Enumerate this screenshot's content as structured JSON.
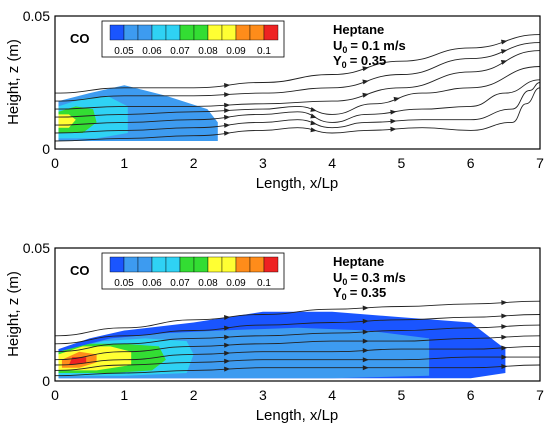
{
  "palette": {
    "levels": [
      "#1a55ff",
      "#3d9bf0",
      "#2fd2f4",
      "#33dd33",
      "#ffff33",
      "#ff8c1a",
      "#ee2222"
    ],
    "background_field": "#2a66e6",
    "streamline": "#222222"
  },
  "chart_data": [
    {
      "type": "heatmap",
      "title": "",
      "xlabel": "Length, x/Lp",
      "ylabel": "Height, z (m)",
      "xlim": [
        0,
        7
      ],
      "ylim": [
        0,
        0.05
      ],
      "xticks": [
        "0",
        "1",
        "2",
        "3",
        "4",
        "5",
        "6",
        "7"
      ],
      "yticks": [
        "0",
        "0.05"
      ],
      "grid": false,
      "colorbar": {
        "label": "CO",
        "ticks": [
          "0.05",
          "0.06",
          "0.07",
          "0.08",
          "0.09",
          "0.1"
        ]
      },
      "annotation": {
        "fuel": "Heptane",
        "u0_text": "U",
        "u0_sub": "0",
        "u0_value": "= 0.1 m/s",
        "y0_text": "Y",
        "y0_sub": "0",
        "y0_value": "= 0.35"
      },
      "u0": 0.1,
      "y0": 0.35,
      "regions": [
        {
          "level": 1,
          "points": [
            [
              0.05,
              0.003
            ],
            [
              0.05,
              0.018
            ],
            [
              0.5,
              0.021
            ],
            [
              1.0,
              0.024
            ],
            [
              1.6,
              0.02
            ],
            [
              2.2,
              0.015
            ],
            [
              2.35,
              0.01
            ],
            [
              2.35,
              0.003
            ]
          ]
        },
        {
          "level": 2,
          "points": [
            [
              0.05,
              0.004
            ],
            [
              0.05,
              0.016
            ],
            [
              0.4,
              0.019
            ],
            [
              0.75,
              0.02
            ],
            [
              1.05,
              0.016
            ],
            [
              1.05,
              0.006
            ],
            [
              0.6,
              0.004
            ]
          ]
        },
        {
          "level": 3,
          "points": [
            [
              0.05,
              0.006
            ],
            [
              0.05,
              0.014
            ],
            [
              0.3,
              0.016
            ],
            [
              0.55,
              0.015
            ],
            [
              0.6,
              0.01
            ],
            [
              0.4,
              0.006
            ]
          ]
        },
        {
          "level": 4,
          "points": [
            [
              0.05,
              0.008
            ],
            [
              0.05,
              0.013
            ],
            [
              0.2,
              0.013
            ],
            [
              0.3,
              0.011
            ],
            [
              0.2,
              0.008
            ]
          ]
        }
      ],
      "streamlines": [
        [
          [
            0,
            0.021
          ],
          [
            1,
            0.023
          ],
          [
            2,
            0.023
          ],
          [
            3,
            0.025
          ],
          [
            4,
            0.028
          ],
          [
            5,
            0.033
          ],
          [
            6,
            0.038
          ],
          [
            7,
            0.043
          ]
        ],
        [
          [
            0,
            0.018
          ],
          [
            1,
            0.02
          ],
          [
            2,
            0.02
          ],
          [
            3,
            0.021
          ],
          [
            4,
            0.023
          ],
          [
            5,
            0.028
          ],
          [
            6,
            0.034
          ],
          [
            7,
            0.04
          ]
        ],
        [
          [
            0,
            0.015
          ],
          [
            1,
            0.016
          ],
          [
            2,
            0.016
          ],
          [
            3,
            0.017
          ],
          [
            4,
            0.018
          ],
          [
            5,
            0.023
          ],
          [
            6,
            0.029
          ],
          [
            7,
            0.037
          ]
        ],
        [
          [
            0,
            0.012
          ],
          [
            1,
            0.013
          ],
          [
            2,
            0.014
          ],
          [
            3,
            0.015
          ],
          [
            3.5,
            0.016
          ],
          [
            4,
            0.013
          ],
          [
            4.6,
            0.017
          ],
          [
            5.3,
            0.021
          ],
          [
            6,
            0.023
          ],
          [
            7,
            0.031
          ]
        ],
        [
          [
            0,
            0.009
          ],
          [
            1,
            0.01
          ],
          [
            2,
            0.011
          ],
          [
            3,
            0.013
          ],
          [
            3.5,
            0.014
          ],
          [
            4,
            0.01
          ],
          [
            4.5,
            0.013
          ],
          [
            5.3,
            0.015
          ],
          [
            6,
            0.016
          ],
          [
            6.5,
            0.021
          ],
          [
            7,
            0.026
          ]
        ],
        [
          [
            0,
            0.006
          ],
          [
            1,
            0.007
          ],
          [
            2,
            0.008
          ],
          [
            3,
            0.01
          ],
          [
            3.5,
            0.011
          ],
          [
            4,
            0.008
          ],
          [
            4.5,
            0.01
          ],
          [
            5.3,
            0.011
          ],
          [
            6,
            0.011
          ],
          [
            6.6,
            0.015
          ],
          [
            6.85,
            0.022
          ],
          [
            7,
            0.025
          ]
        ],
        [
          [
            0,
            0.003
          ],
          [
            1,
            0.004
          ],
          [
            2,
            0.005
          ],
          [
            3,
            0.007
          ],
          [
            3.5,
            0.008
          ],
          [
            4,
            0.006
          ],
          [
            4.5,
            0.007
          ],
          [
            5.3,
            0.008
          ],
          [
            6,
            0.007
          ],
          [
            6.6,
            0.01
          ],
          [
            6.8,
            0.017
          ],
          [
            7,
            0.023
          ]
        ]
      ]
    },
    {
      "type": "heatmap",
      "title": "",
      "xlabel": "Length, x/Lp",
      "ylabel": "Height, z (m)",
      "xlim": [
        0,
        7
      ],
      "ylim": [
        0,
        0.05
      ],
      "xticks": [
        "0",
        "1",
        "2",
        "3",
        "4",
        "5",
        "6",
        "7"
      ],
      "yticks": [
        "0",
        "0.05"
      ],
      "grid": false,
      "colorbar": {
        "label": "CO",
        "ticks": [
          "0.05",
          "0.06",
          "0.07",
          "0.08",
          "0.09",
          "0.1"
        ]
      },
      "annotation": {
        "fuel": "Heptane",
        "u0_text": "U",
        "u0_sub": "0",
        "u0_value": "= 0.3 m/s",
        "y0_text": "Y",
        "y0_sub": "0",
        "y0_value": "= 0.35"
      },
      "u0": 0.3,
      "y0": 0.35,
      "regions": [
        {
          "level": 0,
          "points": [
            [
              0.05,
              0.001
            ],
            [
              0.05,
              0.012
            ],
            [
              0.5,
              0.016
            ],
            [
              1,
              0.019
            ],
            [
              2,
              0.022
            ],
            [
              3,
              0.026
            ],
            [
              4,
              0.026
            ],
            [
              5,
              0.024
            ],
            [
              6,
              0.022
            ],
            [
              6.5,
              0.012
            ],
            [
              6.5,
              0.003
            ],
            [
              6,
              0.001
            ]
          ]
        },
        {
          "level": 1,
          "points": [
            [
              0.05,
              0.001
            ],
            [
              0.05,
              0.011
            ],
            [
              0.8,
              0.016
            ],
            [
              1.6,
              0.018
            ],
            [
              2.4,
              0.019
            ],
            [
              3.5,
              0.02
            ],
            [
              4.5,
              0.019
            ],
            [
              5.4,
              0.016
            ],
            [
              5.4,
              0.002
            ],
            [
              4,
              0.001
            ]
          ]
        },
        {
          "level": 2,
          "points": [
            [
              0.05,
              0.002
            ],
            [
              0.05,
              0.011
            ],
            [
              0.7,
              0.015
            ],
            [
              1.3,
              0.016
            ],
            [
              1.9,
              0.015
            ],
            [
              2,
              0.01
            ],
            [
              1.9,
              0.003
            ],
            [
              1,
              0.002
            ]
          ]
        },
        {
          "level": 3,
          "points": [
            [
              0.05,
              0.003
            ],
            [
              0.05,
              0.011
            ],
            [
              0.5,
              0.014
            ],
            [
              1,
              0.014
            ],
            [
              1.5,
              0.013
            ],
            [
              1.6,
              0.008
            ],
            [
              1.4,
              0.004
            ],
            [
              0.8,
              0.003
            ]
          ]
        },
        {
          "level": 4,
          "points": [
            [
              0.05,
              0.004
            ],
            [
              0.05,
              0.01
            ],
            [
              0.4,
              0.013
            ],
            [
              0.8,
              0.013
            ],
            [
              1.1,
              0.011
            ],
            [
              1.1,
              0.006
            ],
            [
              0.6,
              0.004
            ]
          ]
        },
        {
          "level": 5,
          "points": [
            [
              0.1,
              0.005
            ],
            [
              0.1,
              0.008
            ],
            [
              0.35,
              0.011
            ],
            [
              0.6,
              0.01
            ],
            [
              0.6,
              0.007
            ],
            [
              0.35,
              0.005
            ]
          ]
        },
        {
          "level": 6,
          "points": [
            [
              0.2,
              0.006
            ],
            [
              0.25,
              0.009
            ],
            [
              0.45,
              0.009
            ],
            [
              0.45,
              0.007
            ]
          ]
        }
      ],
      "streamlines": [
        [
          [
            0,
            0.017
          ],
          [
            1,
            0.02
          ],
          [
            2,
            0.023
          ],
          [
            3,
            0.025
          ],
          [
            4,
            0.027
          ],
          [
            5,
            0.028
          ],
          [
            6,
            0.029
          ],
          [
            7,
            0.03
          ]
        ],
        [
          [
            0,
            0.014
          ],
          [
            1,
            0.017
          ],
          [
            2,
            0.019
          ],
          [
            3,
            0.021
          ],
          [
            4,
            0.022
          ],
          [
            5,
            0.023
          ],
          [
            6,
            0.024
          ],
          [
            7,
            0.025
          ]
        ],
        [
          [
            0,
            0.011
          ],
          [
            1,
            0.014
          ],
          [
            2,
            0.016
          ],
          [
            3,
            0.017
          ],
          [
            4,
            0.018
          ],
          [
            5,
            0.019
          ],
          [
            6,
            0.02
          ],
          [
            7,
            0.021
          ]
        ],
        [
          [
            0,
            0.008
          ],
          [
            1,
            0.011
          ],
          [
            2,
            0.013
          ],
          [
            3,
            0.014
          ],
          [
            4,
            0.015
          ],
          [
            5,
            0.015
          ],
          [
            6,
            0.016
          ],
          [
            7,
            0.017
          ]
        ],
        [
          [
            0,
            0.006
          ],
          [
            1,
            0.008
          ],
          [
            2,
            0.01
          ],
          [
            3,
            0.011
          ],
          [
            4,
            0.011
          ],
          [
            5,
            0.012
          ],
          [
            6,
            0.012
          ],
          [
            7,
            0.013
          ]
        ],
        [
          [
            0,
            0.004
          ],
          [
            1,
            0.006
          ],
          [
            2,
            0.007
          ],
          [
            3,
            0.008
          ],
          [
            4,
            0.008
          ],
          [
            5,
            0.008
          ],
          [
            6,
            0.009
          ],
          [
            7,
            0.009
          ]
        ],
        [
          [
            0,
            0.002
          ],
          [
            1,
            0.003
          ],
          [
            2,
            0.004
          ],
          [
            3,
            0.005
          ],
          [
            4,
            0.005
          ],
          [
            5,
            0.005
          ],
          [
            6,
            0.005
          ],
          [
            7,
            0.006
          ]
        ]
      ]
    }
  ]
}
